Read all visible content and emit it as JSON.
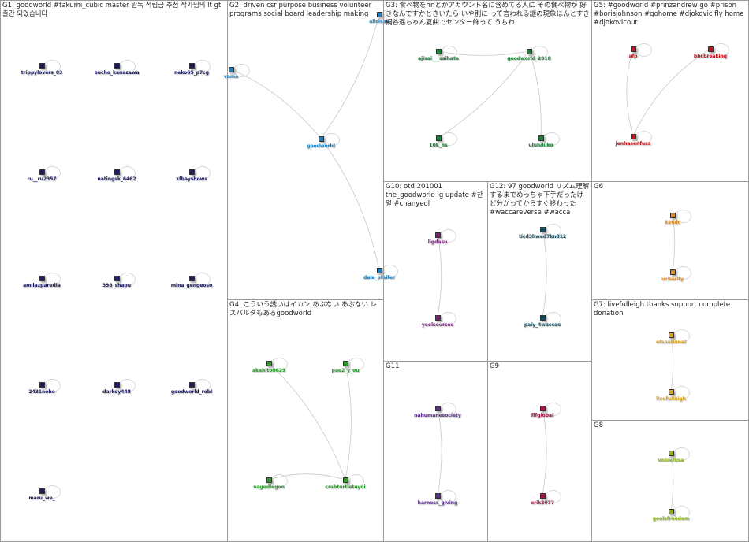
{
  "groups": [
    {
      "title": "G1: goodworld #takumi_cubic master 완독 적립금 추첨 작가님의 lt gt 출간 되었습니다",
      "nodes": [
        "trippylovers_83",
        "bucho_kanazawa",
        "neko65_p7cg",
        "ru__ru2357",
        "natingsk_6462",
        "xfbayshows",
        "amilazparedia",
        "398_shapu",
        "mina_gengeoso",
        "2431neho",
        "darkey448",
        "goodworld_robl",
        "maru_we_"
      ]
    },
    {
      "title": "G2: driven csr purpose business volunteer programs social board leadership making",
      "nodes": [
        "vomo",
        "alicisau",
        "goodworld",
        "dale_pfeifer"
      ]
    },
    {
      "title": "G3: 食べ物をhnとかアカウント名に含めてる人に その食べ物が 好きなんですかときいたら いや別に って言われる謎の現象ほんとすき 桐谷遥ちゃん夏曲でセンター飾って うちわ",
      "nodes": [
        "ajisai___saihate",
        "goodworld_2018",
        "10k_ns",
        "ulululuko"
      ]
    },
    {
      "title": "G5: #goodworld #prinzandrew go #prison #borisjohnson #gohome #djokovic fly home #djokovicout",
      "nodes": [
        "afp",
        "bbcbreaking",
        "jenhasenfuss"
      ]
    },
    {
      "title": "G10: otd 201001 the_goodworld ig update #찬열 #chanyeol",
      "nodes": [
        "ligdasu",
        "yeolsources"
      ]
    },
    {
      "title": "G12: 97 goodworld リズム理解するまでめっちゃ下手だったけど分かってからすぐ終わった #waccareverse #wacca",
      "nodes": [
        "ticd3hwed7kn812",
        "paiy_4waccae"
      ]
    },
    {
      "title": "G6",
      "nodes": [
        "826dc",
        "ucharity"
      ]
    },
    {
      "title": "G4: こういう誘いはイカン あぶない あぶない レ スパルタもあるgoodworld",
      "nodes": [
        "akahito0629",
        "pao2_y_ou",
        "nagedlegon",
        "crabturtletuyoi"
      ]
    },
    {
      "title": "G7: livefulleigh thanks support complete donation",
      "nodes": [
        "efsnational",
        "livefulleigh"
      ]
    },
    {
      "title": "G11",
      "nodes": [
        "nahumanesociety",
        "harness_giving"
      ]
    },
    {
      "title": "G9",
      "nodes": [
        "fffglobal",
        "erik2077"
      ]
    },
    {
      "title": "G8",
      "nodes": [
        "unicefusa",
        "goalsfreedom"
      ]
    }
  ]
}
